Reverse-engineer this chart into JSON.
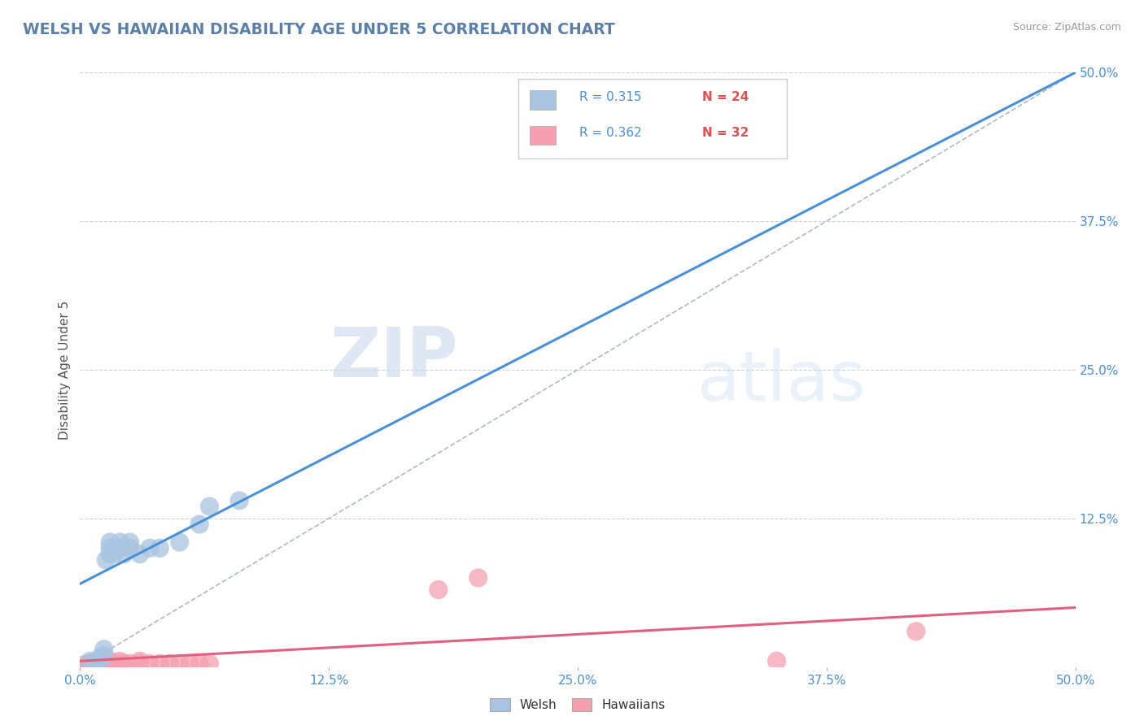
{
  "title": "WELSH VS HAWAIIAN DISABILITY AGE UNDER 5 CORRELATION CHART",
  "source": "Source: ZipAtlas.com",
  "ylabel": "Disability Age Under 5",
  "xlabel": "",
  "xlim": [
    0.0,
    0.5
  ],
  "ylim": [
    0.0,
    0.5
  ],
  "xtick_labels": [
    "0.0%",
    "12.5%",
    "25.0%",
    "37.5%",
    "50.0%"
  ],
  "xtick_vals": [
    0.0,
    0.125,
    0.25,
    0.375,
    0.5
  ],
  "ytick_labels": [
    "12.5%",
    "25.0%",
    "37.5%",
    "50.0%"
  ],
  "ytick_vals": [
    0.125,
    0.25,
    0.375,
    0.5
  ],
  "welsh_R": "0.315",
  "welsh_N": "24",
  "hawaiian_R": "0.362",
  "hawaiian_N": "32",
  "welsh_color": "#a8c4e0",
  "hawaiian_color": "#f4a0b0",
  "welsh_line_color": "#4a90d9",
  "hawaiian_line_color": "#e06080",
  "diagonal_color": "#b0b8c8",
  "watermark_zip": "ZIP",
  "watermark_atlas": "atlas",
  "title_color": "#5a7fa8",
  "legend_R_color": "#4a90d9",
  "legend_N_color": "#e05050",
  "welsh_x": [
    0.005,
    0.008,
    0.01,
    0.01,
    0.012,
    0.012,
    0.013,
    0.015,
    0.015,
    0.015,
    0.017,
    0.018,
    0.02,
    0.02,
    0.022,
    0.025,
    0.025,
    0.03,
    0.035,
    0.04,
    0.05,
    0.06,
    0.065,
    0.08
  ],
  "welsh_y": [
    0.005,
    0.005,
    0.005,
    0.008,
    0.01,
    0.015,
    0.09,
    0.095,
    0.1,
    0.105,
    0.095,
    0.1,
    0.1,
    0.105,
    0.095,
    0.1,
    0.105,
    0.095,
    0.1,
    0.1,
    0.105,
    0.12,
    0.135,
    0.14
  ],
  "hawaiian_x": [
    0.002,
    0.004,
    0.005,
    0.006,
    0.007,
    0.008,
    0.009,
    0.01,
    0.01,
    0.012,
    0.013,
    0.015,
    0.015,
    0.017,
    0.018,
    0.02,
    0.02,
    0.022,
    0.025,
    0.03,
    0.03,
    0.035,
    0.04,
    0.045,
    0.05,
    0.055,
    0.06,
    0.065,
    0.18,
    0.2,
    0.35,
    0.42
  ],
  "hawaiian_y": [
    0.002,
    0.002,
    0.003,
    0.002,
    0.003,
    0.002,
    0.003,
    0.002,
    0.005,
    0.003,
    0.002,
    0.003,
    0.005,
    0.003,
    0.002,
    0.003,
    0.005,
    0.003,
    0.003,
    0.003,
    0.005,
    0.003,
    0.003,
    0.003,
    0.003,
    0.003,
    0.003,
    0.003,
    0.065,
    0.075,
    0.005,
    0.03
  ],
  "welsh_line_x0": 0.0,
  "welsh_line_y0": 0.07,
  "welsh_line_x1": 0.5,
  "welsh_line_y1": 0.5,
  "hawaiian_line_x0": 0.0,
  "hawaiian_line_y0": 0.005,
  "hawaiian_line_x1": 0.5,
  "hawaiian_line_y1": 0.05,
  "background_color": "#ffffff",
  "grid_color": "#c8d4dc"
}
